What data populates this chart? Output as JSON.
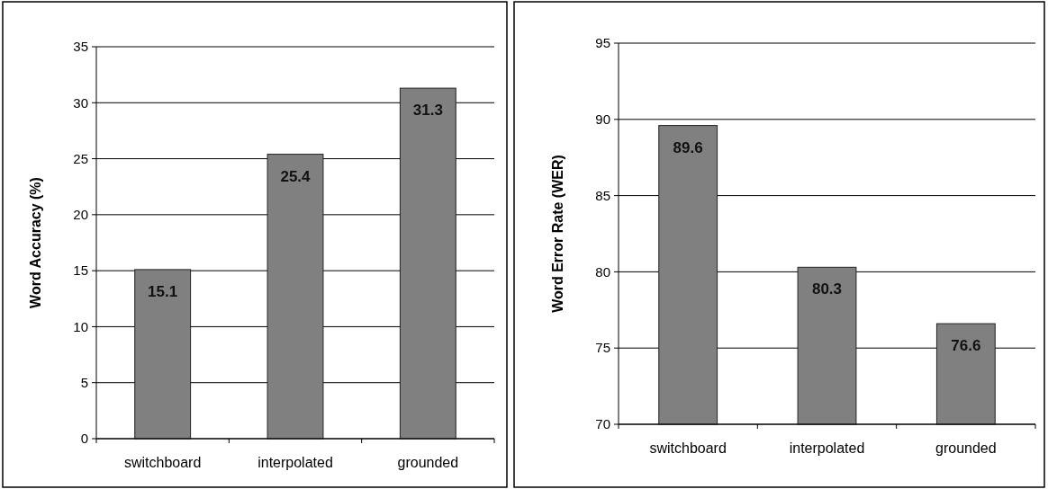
{
  "chart_data": [
    {
      "type": "bar",
      "ylabel": "Word Accuracy (%)",
      "categories": [
        "switchboard",
        "interpolated",
        "grounded"
      ],
      "values": [
        15.1,
        25.4,
        31.3
      ],
      "color": "#808080",
      "ylim": [
        0,
        35
      ],
      "yticks": [
        0,
        5,
        10,
        15,
        20,
        25,
        30,
        35
      ],
      "grid": "y",
      "data_labels": true
    },
    {
      "type": "bar",
      "ylabel": "Word Error Rate (WER)",
      "categories": [
        "switchboard",
        "interpolated",
        "grounded"
      ],
      "values": [
        89.6,
        80.3,
        76.6
      ],
      "color": "#808080",
      "ylim": [
        70,
        95
      ],
      "yticks": [
        70,
        75,
        80,
        85,
        90,
        95
      ],
      "grid": "y",
      "data_labels": true
    }
  ]
}
